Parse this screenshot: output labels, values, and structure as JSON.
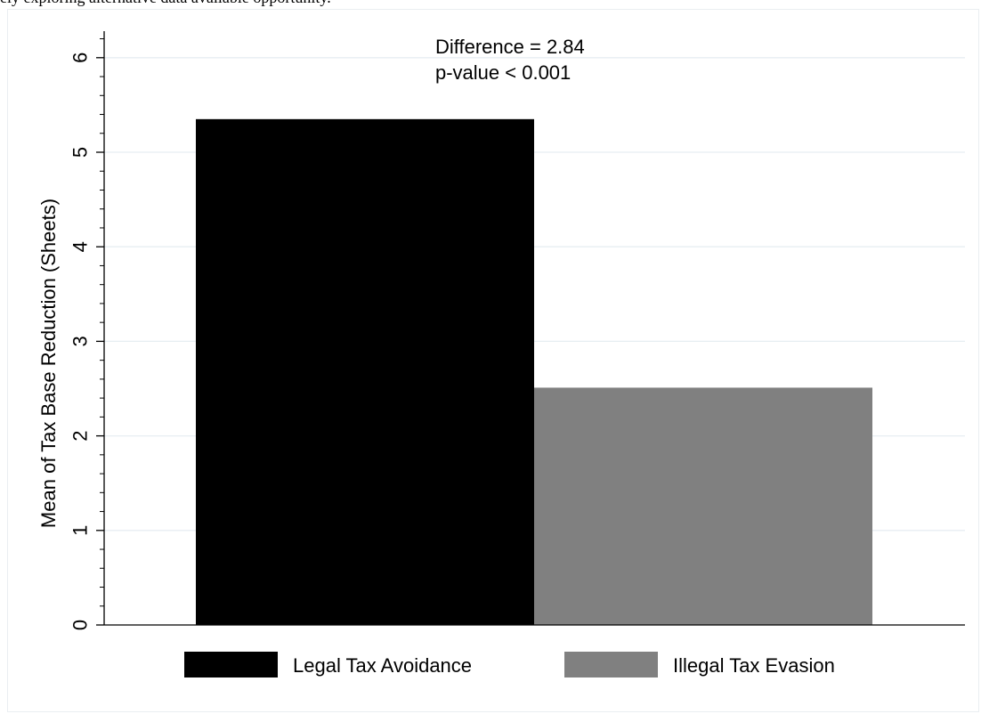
{
  "caption": "ely exploring alternative data available opportunity.",
  "chart_data": {
    "type": "bar",
    "categories": [
      "Legal Tax Avoidance",
      "Illegal Tax Evasion"
    ],
    "values": [
      5.35,
      2.51
    ],
    "title": "",
    "xlabel": "",
    "ylabel": "Mean of Tax Base Reduction (Sheets)",
    "ylim": [
      0,
      6.3
    ],
    "yticks": [
      "0",
      "1",
      "2",
      "3",
      "4",
      "5",
      "6"
    ],
    "minor_ticks_per_major": 5,
    "grid": true,
    "legend": {
      "position": "bottom",
      "entries": [
        "Legal Tax Avoidance",
        "Illegal Tax Evasion"
      ]
    },
    "annotations": [
      "Difference = 2.84",
      "p-value < 0.001"
    ],
    "colors": {
      "Legal Tax Avoidance": "#000000",
      "Illegal Tax Evasion": "#808080",
      "grid": "#e7eef2"
    }
  }
}
